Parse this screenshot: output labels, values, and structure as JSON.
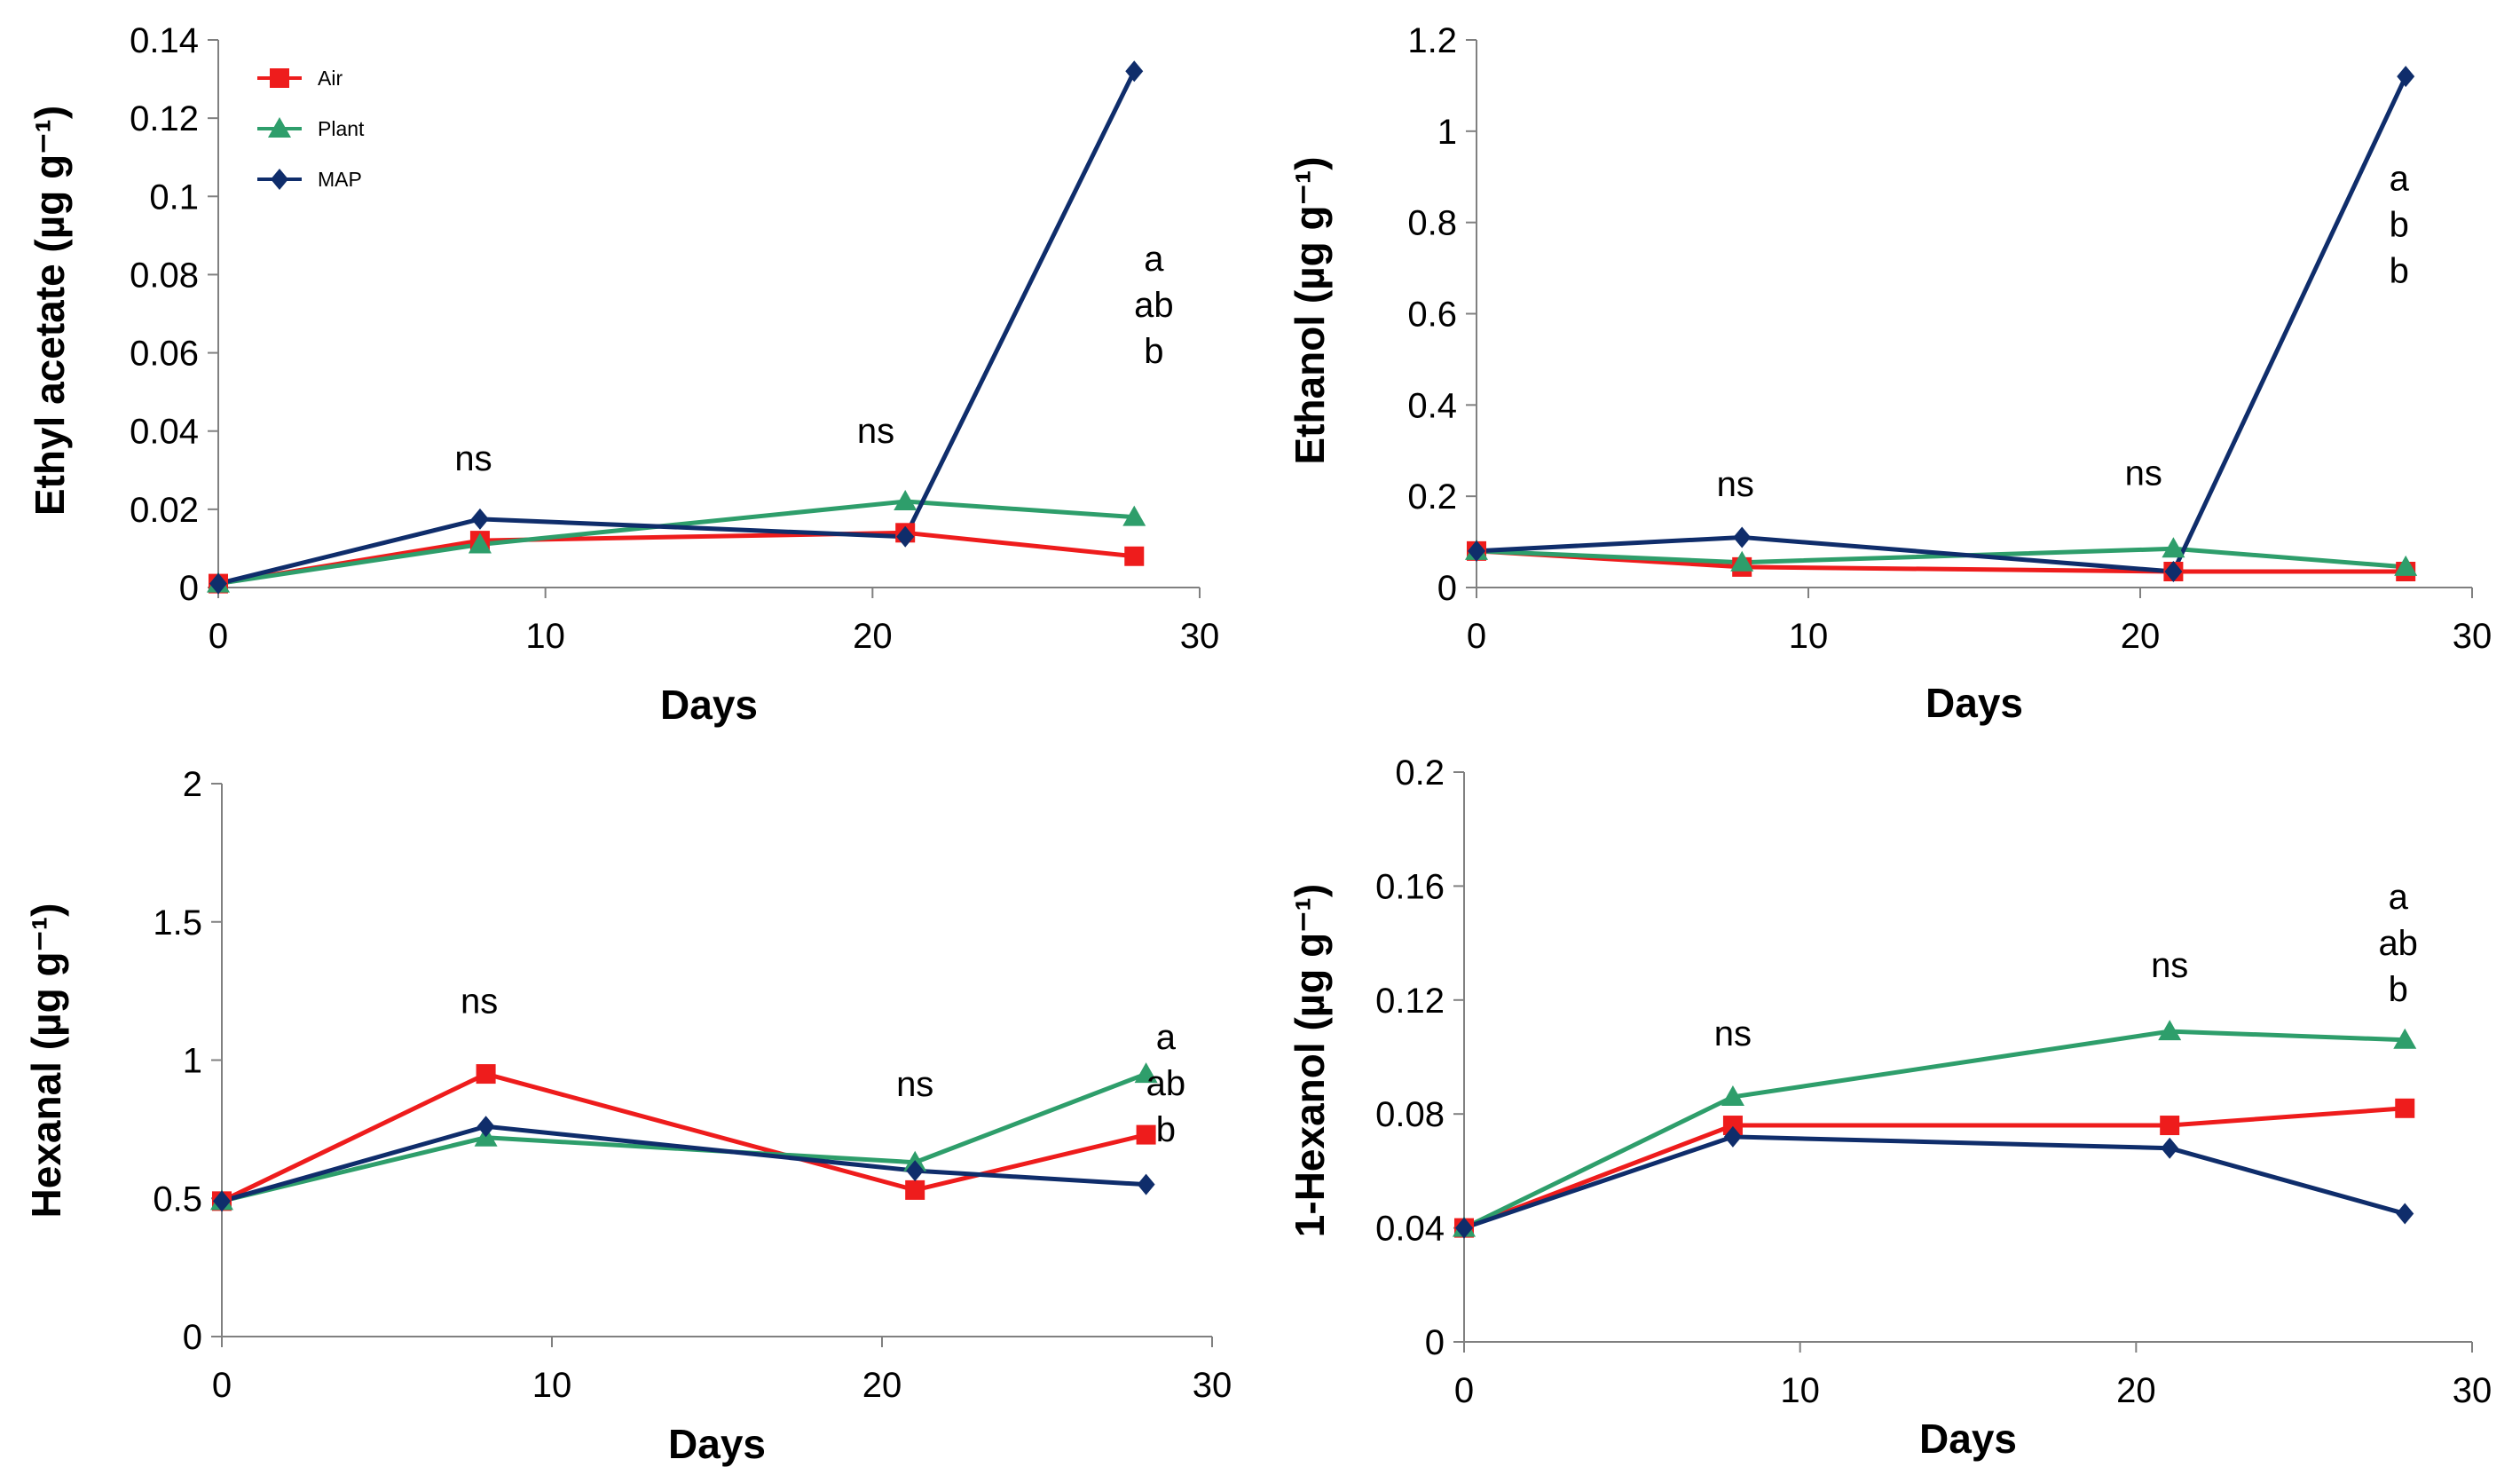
{
  "chart_data": [
    {
      "type": "line",
      "xlabel": "Days",
      "ylabel": "Ethyl acetate (µg g⁻¹)",
      "xlim": [
        0,
        30
      ],
      "ylim": [
        0,
        0.14
      ],
      "xticks": [
        "0",
        "10",
        "20",
        "30"
      ],
      "yticks": [
        "0",
        "0.02",
        "0.04",
        "0.06",
        "0.08",
        "0.1",
        "0.12",
        "0.14"
      ],
      "x": [
        0,
        8,
        21,
        28
      ],
      "series": [
        {
          "name": "Air",
          "color": "#ee1c1c",
          "marker": "square",
          "values": [
            0.001,
            0.012,
            0.014,
            0.008
          ]
        },
        {
          "name": "Plant",
          "color": "#2e9e6b",
          "marker": "triangle",
          "values": [
            0.001,
            0.011,
            0.022,
            0.018
          ]
        },
        {
          "name": "MAP",
          "color": "#0f2d6b",
          "marker": "diamond",
          "values": [
            0.001,
            0.0175,
            0.013,
            0.132
          ]
        }
      ],
      "annotations": [
        {
          "x": 7.8,
          "y": 0.03,
          "lines": [
            "ns"
          ]
        },
        {
          "x": 20.1,
          "y": 0.037,
          "lines": [
            "ns"
          ]
        },
        {
          "x": 28.6,
          "y": 0.081,
          "lines": [
            "a",
            "ab",
            "b"
          ]
        }
      ],
      "legend": {
        "position": "top-left",
        "entries": [
          "Air",
          "Plant",
          "MAP"
        ]
      }
    },
    {
      "type": "line",
      "xlabel": "Days",
      "ylabel": "Ethanol (µg g⁻¹)",
      "xlim": [
        0,
        30
      ],
      "ylim": [
        0,
        1.2
      ],
      "xticks": [
        "0",
        "10",
        "20",
        "30"
      ],
      "yticks": [
        "0",
        "0.2",
        "0.4",
        "0.6",
        "0.8",
        "1",
        "1.2"
      ],
      "x": [
        0,
        8,
        21,
        28
      ],
      "series": [
        {
          "name": "Air",
          "color": "#ee1c1c",
          "marker": "square",
          "values": [
            0.08,
            0.045,
            0.035,
            0.035
          ]
        },
        {
          "name": "Plant",
          "color": "#2e9e6b",
          "marker": "triangle",
          "values": [
            0.08,
            0.055,
            0.085,
            0.045
          ]
        },
        {
          "name": "MAP",
          "color": "#0f2d6b",
          "marker": "diamond",
          "values": [
            0.08,
            0.11,
            0.035,
            1.12
          ]
        }
      ],
      "annotations": [
        {
          "x": 7.8,
          "y": 0.2,
          "lines": [
            "ns"
          ]
        },
        {
          "x": 20.1,
          "y": 0.225,
          "lines": [
            "ns"
          ]
        },
        {
          "x": 27.8,
          "y": 0.87,
          "lines": [
            "a",
            "b",
            "b"
          ]
        }
      ]
    },
    {
      "type": "line",
      "xlabel": "Days",
      "ylabel": "Hexanal  (µg g⁻¹)",
      "xlim": [
        0,
        30
      ],
      "ylim": [
        0,
        2
      ],
      "xticks": [
        "0",
        "10",
        "20",
        "30"
      ],
      "yticks": [
        "0",
        "0.5",
        "1",
        "1.5",
        "2"
      ],
      "x": [
        0,
        8,
        21,
        28
      ],
      "series": [
        {
          "name": "Air",
          "color": "#ee1c1c",
          "marker": "square",
          "values": [
            0.49,
            0.95,
            0.53,
            0.73
          ]
        },
        {
          "name": "Plant",
          "color": "#2e9e6b",
          "marker": "triangle",
          "values": [
            0.49,
            0.72,
            0.63,
            0.95
          ]
        },
        {
          "name": "MAP",
          "color": "#0f2d6b",
          "marker": "diamond",
          "values": [
            0.49,
            0.76,
            0.6,
            0.55
          ]
        }
      ],
      "annotations": [
        {
          "x": 7.8,
          "y": 1.17,
          "lines": [
            "ns"
          ]
        },
        {
          "x": 21,
          "y": 0.87,
          "lines": [
            "ns"
          ]
        },
        {
          "x": 28.6,
          "y": 1.04,
          "lines": [
            "a",
            "ab",
            "b"
          ]
        }
      ]
    },
    {
      "type": "line",
      "xlabel": "Days",
      "ylabel": "1-Hexanol  (µg g⁻¹)",
      "xlim": [
        0,
        30
      ],
      "ylim": [
        0,
        0.2
      ],
      "xticks": [
        "0",
        "10",
        "20",
        "30"
      ],
      "yticks": [
        "0",
        "0.04",
        "0.08",
        "0.12",
        "0.16",
        "0.2"
      ],
      "x": [
        0,
        8,
        21,
        28
      ],
      "series": [
        {
          "name": "Air",
          "color": "#ee1c1c",
          "marker": "square",
          "values": [
            0.04,
            0.076,
            0.076,
            0.082
          ]
        },
        {
          "name": "Plant",
          "color": "#2e9e6b",
          "marker": "triangle",
          "values": [
            0.04,
            0.086,
            0.109,
            0.106
          ]
        },
        {
          "name": "MAP",
          "color": "#0f2d6b",
          "marker": "diamond",
          "values": [
            0.04,
            0.072,
            0.068,
            0.045
          ]
        }
      ],
      "annotations": [
        {
          "x": 8,
          "y": 0.104,
          "lines": [
            "ns"
          ]
        },
        {
          "x": 21,
          "y": 0.128,
          "lines": [
            "ns"
          ]
        },
        {
          "x": 27.8,
          "y": 0.152,
          "lines": [
            "a",
            "ab",
            "b"
          ]
        }
      ]
    }
  ]
}
